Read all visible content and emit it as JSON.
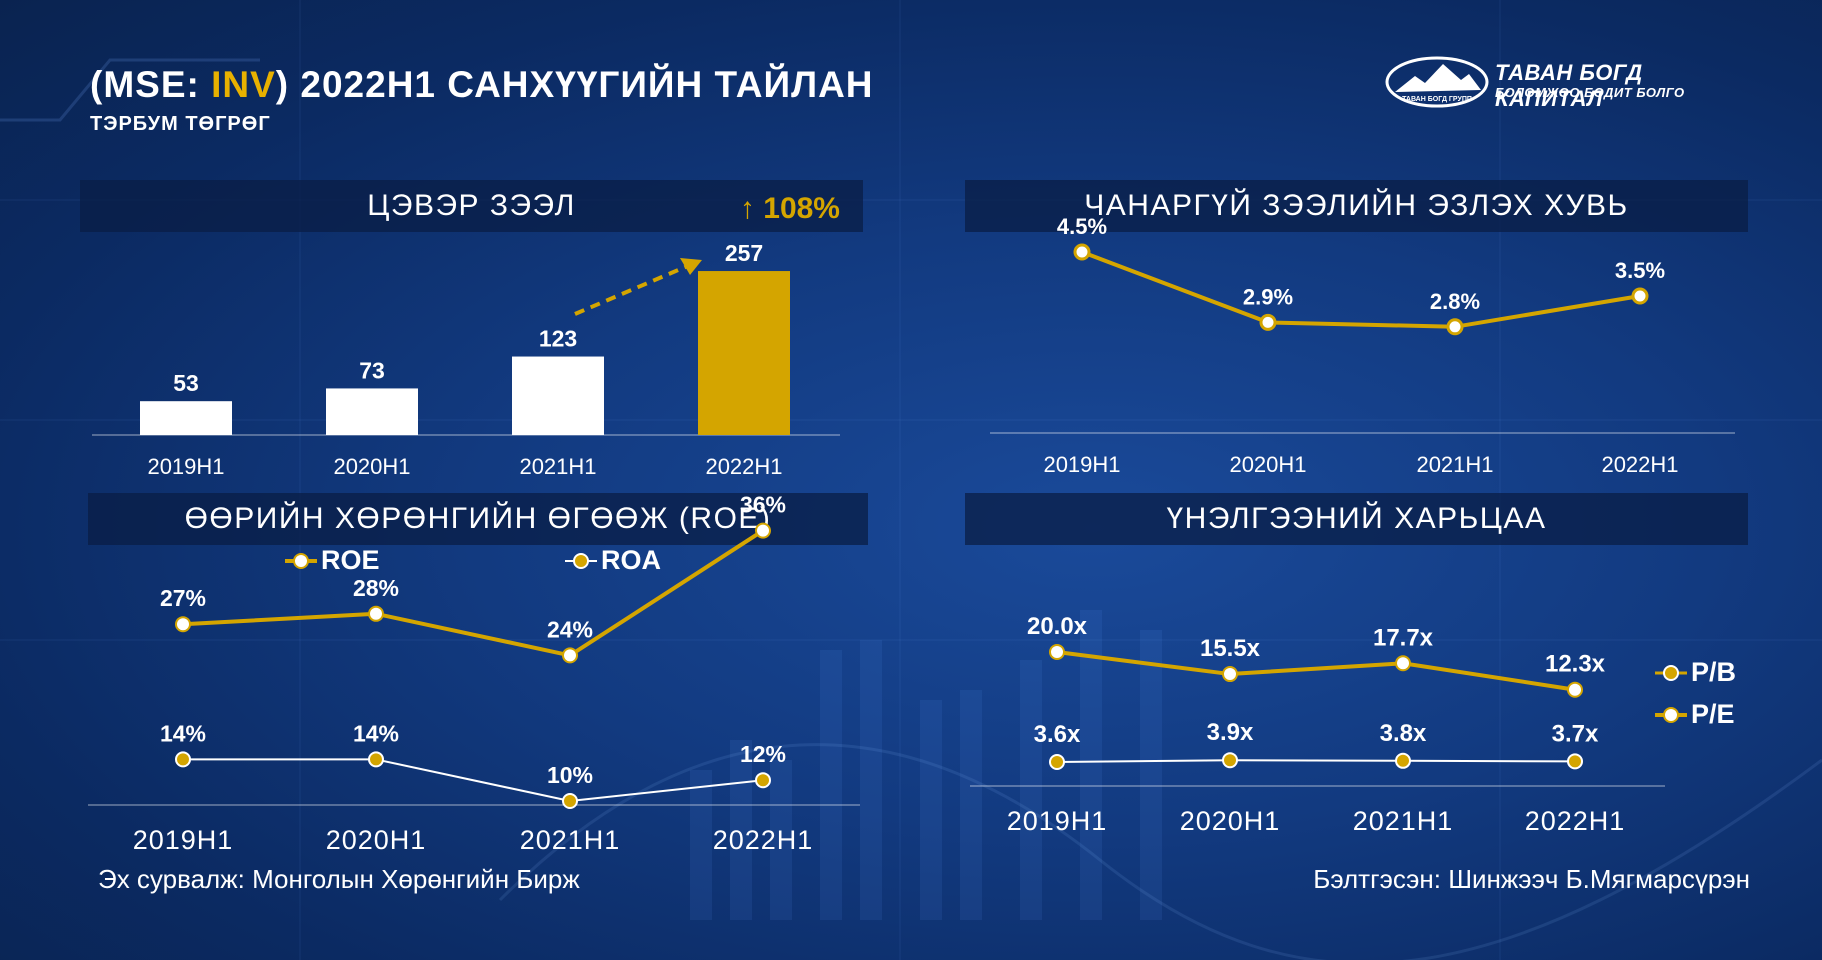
{
  "header": {
    "title_prefix": "(MSE: ",
    "title_ticker": "INV",
    "title_suffix": ") 2022H1 САНХҮҮГИЙН ТАЙЛАН",
    "subtitle": "ТЭРБУМ ТӨГРӨГ"
  },
  "logo": {
    "name": "ТАВАН БОГД КАПИТАЛ",
    "tagline": "БОЛОМЖОО БОДИТ БОЛГО",
    "emblem_text": "ТАВАН БОГД ГРУПП",
    "icon": "mountain-icon"
  },
  "colors": {
    "accent": "#d4a500",
    "bar_white": "#ffffff",
    "band_bg": "#0a1e46"
  },
  "chart_data": [
    {
      "id": "net-loans",
      "type": "bar",
      "title": "ЦЭВЭР ЗЭЭЛ",
      "categories": [
        "2019H1",
        "2020H1",
        "2021H1",
        "2022H1"
      ],
      "values": [
        53,
        73,
        123,
        257
      ],
      "value_labels": [
        "53",
        "73",
        "123",
        "257"
      ],
      "highlight_index": 3,
      "growth_label": "↑ 108%",
      "ylim": [
        0,
        290
      ]
    },
    {
      "id": "npl-share",
      "type": "line",
      "title": "ЧАНАРГҮЙ ЗЭЭЛИЙН ЭЗЛЭХ ХУВЬ",
      "categories": [
        "2019H1",
        "2020H1",
        "2021H1",
        "2022H1"
      ],
      "values": [
        4.5,
        2.9,
        2.8,
        3.5
      ],
      "value_labels": [
        "4.5%",
        "2.9%",
        "2.8%",
        "3.5%"
      ],
      "ylim": [
        0,
        6
      ]
    },
    {
      "id": "roe-roa",
      "type": "line",
      "title": "ӨӨРИЙН ХӨРӨНГИЙН ӨГӨӨЖ (ROE)",
      "categories": [
        "2019H1",
        "2020H1",
        "2021H1",
        "2022H1"
      ],
      "series": [
        {
          "name": "ROE",
          "values": [
            27,
            28,
            24,
            36
          ],
          "value_labels": [
            "27%",
            "28%",
            "24%",
            "36%"
          ]
        },
        {
          "name": "ROA",
          "values": [
            14,
            14,
            10,
            12
          ],
          "value_labels": [
            "14%",
            "14%",
            "10%",
            "12%"
          ]
        }
      ],
      "legend": "top",
      "ylim": [
        0,
        40
      ]
    },
    {
      "id": "valuation",
      "type": "line",
      "title": "ҮНЭЛГЭЭНИЙ ХАРЬЦАА",
      "categories": [
        "2019H1",
        "2020H1",
        "2021H1",
        "2022H1"
      ],
      "series": [
        {
          "name": "P/E",
          "values": [
            20.0,
            15.5,
            17.7,
            12.3
          ],
          "value_labels": [
            "20.0x",
            "15.5x",
            "17.7x",
            "12.3x"
          ]
        },
        {
          "name": "P/B",
          "values": [
            3.6,
            3.9,
            3.8,
            3.7
          ],
          "value_labels": [
            "3.6x",
            "3.9x",
            "3.8x",
            "3.7x"
          ]
        }
      ],
      "legend_labels": [
        "P/B",
        "P/E"
      ],
      "legend": "right",
      "ylim": [
        0,
        22
      ]
    }
  ],
  "footer": {
    "source": "Эх сурвалж: Монголын Хөрөнгийн Бирж",
    "prepared_by": "Бэлтгэсэн: Шинжээч Б.Мягмарсүрэн"
  }
}
